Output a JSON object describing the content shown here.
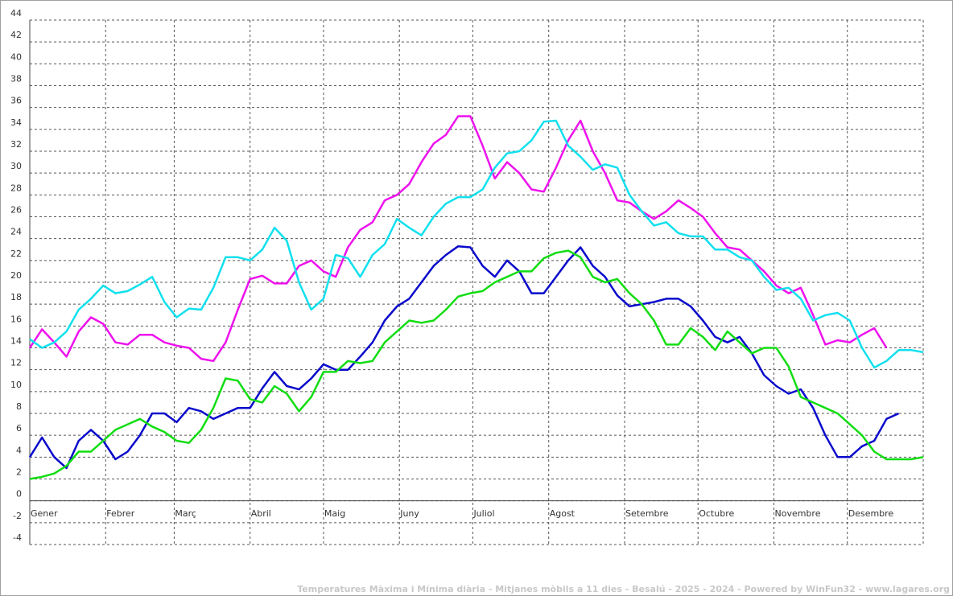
{
  "chart_data": {
    "type": "line",
    "footer": "Temperatures Màxima i Mínima diària - Mitjanes mòbils a 11 dies - Besalú - 2025 - 2024 - Powered by WinFun32 - www.lagares.org",
    "xlim": [
      0,
      365
    ],
    "xticks": [
      {
        "value": 0,
        "label": "Gener"
      },
      {
        "value": 31,
        "label": "Febrer"
      },
      {
        "value": 59,
        "label": "Març"
      },
      {
        "value": 90,
        "label": "Abril"
      },
      {
        "value": 120,
        "label": "Maig"
      },
      {
        "value": 151,
        "label": "Juny"
      },
      {
        "value": 181,
        "label": "Juliol"
      },
      {
        "value": 212,
        "label": "Agost"
      },
      {
        "value": 243,
        "label": "Setembre"
      },
      {
        "value": 273,
        "label": "Octubre"
      },
      {
        "value": 304,
        "label": "Novembre"
      },
      {
        "value": 334,
        "label": "Desembre"
      }
    ],
    "ylim": [
      -4,
      44
    ],
    "yticks": [
      -4,
      -2,
      0,
      2,
      4,
      6,
      8,
      10,
      12,
      14,
      16,
      18,
      20,
      22,
      24,
      26,
      28,
      30,
      32,
      34,
      36,
      38,
      40,
      42,
      44
    ],
    "grid": true,
    "x": [
      0,
      5,
      10,
      15,
      20,
      25,
      30,
      35,
      40,
      45,
      50,
      55,
      60,
      65,
      70,
      75,
      80,
      85,
      90,
      95,
      100,
      105,
      110,
      115,
      120,
      125,
      130,
      135,
      140,
      145,
      150,
      155,
      160,
      165,
      170,
      175,
      180,
      185,
      190,
      195,
      200,
      205,
      210,
      215,
      220,
      225,
      230,
      235,
      240,
      245,
      250,
      255,
      260,
      265,
      270,
      275,
      280,
      285,
      290,
      295,
      300,
      305,
      310,
      315,
      320,
      325,
      330,
      335,
      340,
      345,
      350,
      355,
      360,
      365
    ],
    "series": [
      {
        "color": "#ee11ee",
        "values": [
          14,
          15.7,
          14.5,
          13.2,
          15.5,
          16.8,
          16.2,
          14.5,
          14.3,
          15.2,
          15.2,
          14.5,
          14.2,
          14,
          13,
          12.8,
          14.5,
          17.5,
          20.3,
          20.6,
          19.9,
          19.9,
          21.5,
          22,
          21,
          20.5,
          23.2,
          24.8,
          25.5,
          27.5,
          28,
          29,
          31,
          32.7,
          33.5,
          35.2,
          35.2,
          32.5,
          29.5,
          31,
          30,
          28.5,
          28.3,
          30.5,
          33,
          34.8,
          32,
          30,
          27.5,
          27.3,
          26.5,
          25.8,
          26.5,
          27.5,
          26.8,
          26,
          24.5,
          23.2,
          23,
          22,
          21,
          19.7,
          19,
          19.5,
          17,
          14.3,
          14.7,
          14.5,
          15.2,
          15.8,
          14,
          null,
          null,
          null
        ]
      },
      {
        "color": "#11e0ee",
        "values": [
          14.8,
          14,
          14.5,
          15.5,
          17.5,
          18.5,
          19.7,
          19,
          19.2,
          19.8,
          20.5,
          18.2,
          16.8,
          17.6,
          17.5,
          19.5,
          22.3,
          22.3,
          22,
          23,
          25,
          23.8,
          20,
          17.5,
          18.5,
          22.5,
          22.2,
          20.5,
          22.5,
          23.5,
          25.8,
          25,
          24.3,
          26,
          27.2,
          27.8,
          27.8,
          28.5,
          30.5,
          31.8,
          32,
          33,
          34.7,
          34.8,
          32.5,
          31.5,
          30.3,
          30.8,
          30.5,
          28,
          26.5,
          25.2,
          25.5,
          24.5,
          24.2,
          24.2,
          23,
          23,
          22.3,
          22,
          20.5,
          19.3,
          19.5,
          18.5,
          16.5,
          17,
          17.2,
          16.5,
          14,
          12.2,
          12.8,
          13.8,
          13.8,
          13.6
        ]
      },
      {
        "color": "#0a0acc",
        "values": [
          4,
          5.8,
          4,
          3,
          5.5,
          6.5,
          5.5,
          3.8,
          4.5,
          6,
          8,
          8,
          7.2,
          8.5,
          8.2,
          7.5,
          8,
          8.5,
          8.5,
          10.3,
          11.8,
          10.5,
          10.2,
          11.2,
          12.5,
          12,
          12,
          13.2,
          14.5,
          16.5,
          17.8,
          18.5,
          20,
          21.5,
          22.5,
          23.3,
          23.2,
          21.5,
          20.5,
          22,
          21,
          19,
          19,
          20.5,
          22,
          23.2,
          21.5,
          20.5,
          18.8,
          17.8,
          18,
          18.2,
          18.5,
          18.5,
          17.8,
          16.5,
          15,
          14.5,
          15,
          13.5,
          11.5,
          10.5,
          9.8,
          10.2,
          8.5,
          6,
          4,
          4,
          5,
          5.5,
          7.5,
          8,
          null,
          null
        ]
      },
      {
        "color": "#11dd11",
        "values": [
          2,
          2.2,
          2.5,
          3.2,
          4.5,
          4.5,
          5.5,
          6.5,
          7,
          7.5,
          6.8,
          6.3,
          5.5,
          5.3,
          6.5,
          8.5,
          11.2,
          11,
          9.3,
          9,
          10.5,
          9.8,
          8.2,
          9.5,
          11.8,
          11.8,
          12.8,
          12.6,
          12.8,
          14.5,
          15.5,
          16.5,
          16.3,
          16.5,
          17.5,
          18.7,
          19,
          19.2,
          20,
          20.5,
          21,
          21,
          22.2,
          22.7,
          22.9,
          22.3,
          20.5,
          20,
          20.3,
          19,
          18,
          16.5,
          14.3,
          14.3,
          15.8,
          15,
          13.8,
          15.5,
          14.5,
          13.5,
          14,
          14,
          12.3,
          9.5,
          9,
          8.5,
          8,
          7,
          6,
          4.5,
          3.8,
          3.8,
          3.8,
          4
        ]
      }
    ]
  }
}
